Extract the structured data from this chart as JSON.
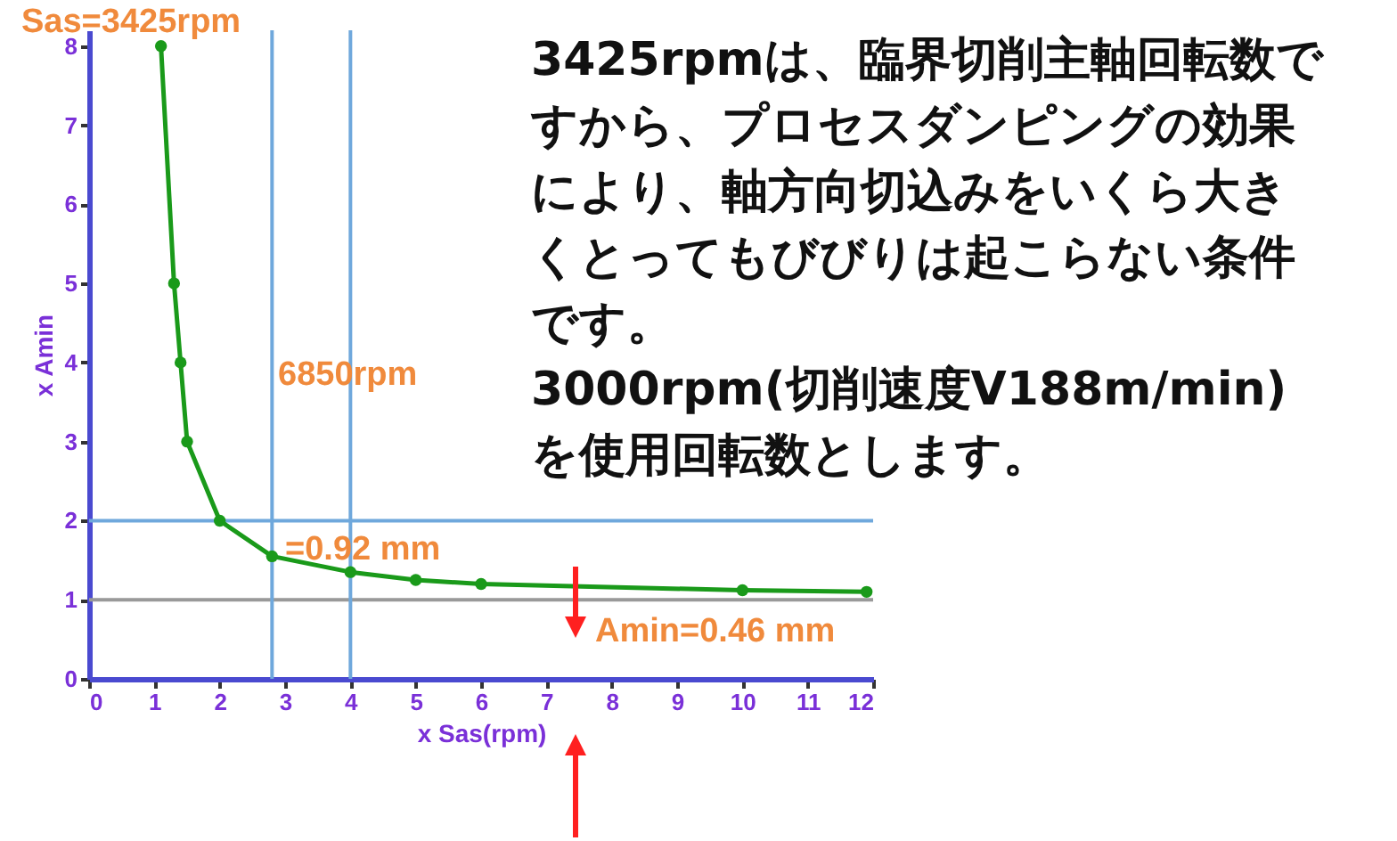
{
  "chart_data": {
    "type": "line",
    "xlabel": "x Sas(rpm)",
    "ylabel": "x Amin",
    "x": [
      1.1,
      1.3,
      1.4,
      1.5,
      2,
      2.8,
      4,
      5,
      6,
      10,
      11.9
    ],
    "series": [
      {
        "color": "#1a9a1a",
        "values": [
          8,
          5,
          4,
          3,
          2,
          1.55,
          1.35,
          1.25,
          1.2,
          1.12,
          1.1
        ]
      }
    ],
    "xlim": [
      0,
      12
    ],
    "xticks": [
      0,
      1,
      2,
      3,
      4,
      5,
      6,
      7,
      8,
      9,
      10,
      11,
      12
    ],
    "ylim": [
      0,
      8.2
    ],
    "yticks": [
      0,
      1,
      2,
      3,
      4,
      5,
      6,
      7,
      8
    ],
    "marker": "circle",
    "line_style": "solid",
    "grid": false,
    "ref_lines": [
      {
        "axis": "y",
        "value": 1,
        "color": "#999999"
      },
      {
        "axis": "x",
        "value": 2.8,
        "color": "#6fa8dc"
      },
      {
        "axis": "x",
        "value": 4,
        "color": "#6fa8dc"
      },
      {
        "axis": "y",
        "value": 2,
        "color": "#6fa8dc"
      }
    ],
    "annotations": [
      "Sas=3425rpm",
      "6850rpm",
      "=0.92 mm",
      "Amin=0.46 mm",
      "3425rpmは、臨界切削主軸回転数ですから、プロセスダンピングの効果により、軸方向切込みをいくら大きくとってもびびりは起こらない条件です。\n3000rpm(切削速度V188m/min)を使用回転数とします。"
    ]
  }
}
